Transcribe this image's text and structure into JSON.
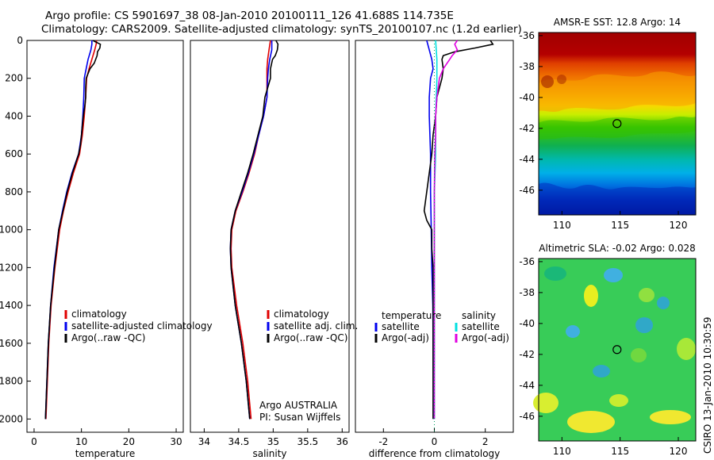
{
  "header": {
    "title_line1": "Argo profile: CS 5901697_38 08-Jan-2010 20100111_126 41.688S 114.735E",
    "title_line2": "Climatology: CARS2009. Satellite-adjusted climatology: synTS_20100107.nc (1.2d earlier)"
  },
  "side_label": "CSIRO 13-Jan-2010 10:30:59",
  "colors": {
    "climatology": "#e00000",
    "satellite": "#0000ee",
    "argo": "#000000",
    "sat_salinity": "#00e0e0",
    "argo_salinity": "#e000e0"
  },
  "chart_data": [
    {
      "type": "line",
      "id": "temperature",
      "xlabel": "temperature",
      "ylabel": "",
      "xlim": [
        -1.5,
        31.5
      ],
      "ylim": [
        2070,
        0
      ],
      "xticks": [
        0,
        10,
        20,
        30
      ],
      "yticks": [
        0,
        200,
        400,
        600,
        800,
        1000,
        1200,
        1400,
        1600,
        1800,
        2000
      ],
      "legend": [
        "climatology",
        "satellite-adjusted climatology",
        "Argo(..raw -QC)"
      ],
      "series": [
        {
          "name": "climatology",
          "color": "#e00000",
          "depth": [
            0,
            20,
            50,
            100,
            150,
            200,
            300,
            400,
            500,
            600,
            700,
            800,
            900,
            1000,
            1200,
            1400,
            1600,
            1800,
            2000
          ],
          "values": [
            13.2,
            13.1,
            12.8,
            12.2,
            11.6,
            11.1,
            10.9,
            10.6,
            10.2,
            9.6,
            8.3,
            7.2,
            6.2,
            5.4,
            4.4,
            3.6,
            3.1,
            2.8,
            2.5
          ]
        },
        {
          "name": "satellite-adjusted climatology",
          "color": "#0000ee",
          "depth": [
            0,
            20,
            50,
            100,
            150,
            200,
            300,
            400,
            500,
            600,
            700,
            800,
            900,
            1000,
            1200,
            1400,
            1600,
            1800,
            2000
          ],
          "values": [
            12.2,
            12.2,
            12.0,
            11.4,
            11.0,
            10.6,
            10.5,
            10.3,
            10.0,
            9.4,
            8.0,
            6.9,
            6.0,
            5.2,
            4.2,
            3.5,
            3.0,
            2.7,
            2.4
          ]
        },
        {
          "name": "Argo(..raw -QC)",
          "color": "#000000",
          "depth": [
            0,
            20,
            40,
            60,
            80,
            120,
            150,
            200,
            250,
            300,
            350,
            400,
            450,
            500,
            550,
            600,
            700,
            800,
            900,
            1000,
            1200,
            1400,
            1600,
            1800,
            2000
          ],
          "values": [
            12.4,
            14.0,
            13.9,
            13.4,
            13.3,
            12.7,
            11.8,
            11.0,
            10.9,
            10.9,
            10.7,
            10.4,
            10.2,
            10.0,
            9.8,
            9.4,
            8.1,
            7.0,
            6.1,
            5.2,
            4.3,
            3.5,
            3.0,
            2.7,
            2.4
          ]
        }
      ]
    },
    {
      "type": "line",
      "id": "salinity",
      "xlabel": "salinity",
      "ylabel": "",
      "xlim": [
        33.8,
        36.1
      ],
      "ylim": [
        2070,
        0
      ],
      "xticks": [
        34,
        34.5,
        35,
        35.5,
        36
      ],
      "legend": [
        "climatology",
        "satellite adj. clim.",
        "Argo(..raw -QC)"
      ],
      "annotation": [
        "Argo AUSTRALIA",
        "PI: Susan Wijffels"
      ],
      "series": [
        {
          "name": "climatology",
          "color": "#e00000",
          "depth": [
            0,
            50,
            100,
            150,
            200,
            300,
            400,
            500,
            600,
            700,
            800,
            900,
            1000,
            1100,
            1200,
            1400,
            1600,
            1800,
            2000
          ],
          "values": [
            34.96,
            34.94,
            34.92,
            34.91,
            34.91,
            34.91,
            34.86,
            34.79,
            34.73,
            34.65,
            34.56,
            34.46,
            34.4,
            34.39,
            34.4,
            34.47,
            34.56,
            34.63,
            34.68
          ]
        },
        {
          "name": "satellite adj. clim.",
          "color": "#0000ee",
          "depth": [
            0,
            50,
            100,
            150,
            200,
            300,
            400,
            500,
            600,
            700,
            800,
            900,
            1000,
            1100,
            1200,
            1400,
            1600,
            1800,
            2000
          ],
          "values": [
            34.98,
            34.98,
            34.95,
            34.93,
            34.92,
            34.91,
            34.86,
            34.79,
            34.72,
            34.64,
            34.55,
            34.45,
            34.39,
            34.38,
            34.39,
            34.45,
            34.54,
            34.61,
            34.66
          ]
        },
        {
          "name": "Argo(..raw -QC)",
          "color": "#000000",
          "depth": [
            0,
            20,
            50,
            80,
            100,
            150,
            200,
            300,
            400,
            500,
            600,
            700,
            800,
            900,
            1000,
            1100,
            1200,
            1400,
            1600,
            1800,
            2000
          ],
          "values": [
            35.04,
            35.07,
            35.06,
            35.03,
            34.99,
            34.96,
            34.96,
            34.88,
            34.85,
            34.78,
            34.71,
            34.63,
            34.54,
            34.45,
            34.39,
            34.38,
            34.39,
            34.45,
            34.54,
            34.61,
            34.66
          ]
        }
      ]
    },
    {
      "type": "line",
      "id": "difference",
      "xlabel": "difference from climatology",
      "ylabel": "",
      "xlim": [
        -3.1,
        3.1
      ],
      "ylim": [
        2070,
        0
      ],
      "xticks": [
        -2,
        0,
        2
      ],
      "legend_temperature": {
        "title": "temperature",
        "items": [
          "satellite",
          "Argo(-adj)"
        ]
      },
      "legend_salinity": {
        "title": "salinity",
        "items": [
          "satellite",
          "Argo(-adj)"
        ]
      },
      "series": [
        {
          "name": "temperature satellite",
          "color": "#0000ee",
          "depth": [
            0,
            50,
            100,
            150,
            200,
            300,
            400,
            600,
            800,
            1000,
            1200,
            1400,
            1600,
            1800,
            2000
          ],
          "values": [
            -0.3,
            -0.2,
            -0.1,
            -0.05,
            -0.15,
            -0.2,
            -0.2,
            -0.15,
            -0.15,
            -0.12,
            -0.1,
            -0.06,
            -0.05,
            -0.04,
            -0.03
          ]
        },
        {
          "name": "temperature Argo(-adj)",
          "color": "#000000",
          "depth": [
            0,
            20,
            40,
            60,
            80,
            100,
            150,
            200,
            300,
            400,
            500,
            600,
            700,
            800,
            900,
            950,
            1000,
            1100,
            1200,
            1400,
            1600,
            1800,
            2000
          ],
          "values": [
            2.2,
            2.3,
            1.6,
            0.8,
            0.35,
            0.3,
            0.35,
            0.3,
            0.1,
            0.05,
            -0.05,
            -0.1,
            -0.2,
            -0.3,
            -0.4,
            -0.3,
            -0.1,
            -0.1,
            -0.05,
            -0.05,
            -0.05,
            -0.05,
            -0.05
          ]
        },
        {
          "name": "salinity satellite",
          "color": "#00e0e0",
          "depth": [
            0,
            100,
            200,
            400,
            600,
            800,
            1000,
            1200,
            1400,
            1600,
            1800,
            2000
          ],
          "values": [
            0.05,
            0.1,
            0.1,
            0.05,
            0.05,
            0.0,
            0.0,
            0.0,
            0.0,
            0.0,
            0.0,
            0.0
          ]
        },
        {
          "name": "salinity Argo(-adj)",
          "color": "#e000e0",
          "depth": [
            0,
            20,
            50,
            80,
            100,
            150,
            200,
            300,
            400,
            500,
            600,
            800,
            1000,
            1200,
            1400,
            1600,
            1800,
            2000
          ],
          "values": [
            0.9,
            0.8,
            0.9,
            0.7,
            0.6,
            0.35,
            0.2,
            0.1,
            0.05,
            0.05,
            0.02,
            0.0,
            0.0,
            0.0,
            0.0,
            0.0,
            0.0,
            0.0
          ]
        }
      ]
    },
    {
      "type": "heatmap",
      "id": "sst-map",
      "title": "AMSR-E SST: 12.8 Argo: 14",
      "xlim": [
        108,
        121.5
      ],
      "ylim": [
        -47.6,
        -35.8
      ],
      "xticks": [
        110,
        115,
        120
      ],
      "yticks": [
        -36,
        -38,
        -40,
        -42,
        -44,
        -46
      ],
      "marker": {
        "lon": 114.735,
        "lat": -41.688
      }
    },
    {
      "type": "heatmap",
      "id": "sla-map",
      "title": "Altimetric SLA: -0.02 Argo: 0.028",
      "xlim": [
        108,
        121.5
      ],
      "ylim": [
        -47.6,
        -35.8
      ],
      "xticks": [
        110,
        115,
        120
      ],
      "yticks": [
        -36,
        -38,
        -40,
        -42,
        -44,
        -46
      ],
      "marker": {
        "lon": 114.735,
        "lat": -41.688
      }
    }
  ]
}
